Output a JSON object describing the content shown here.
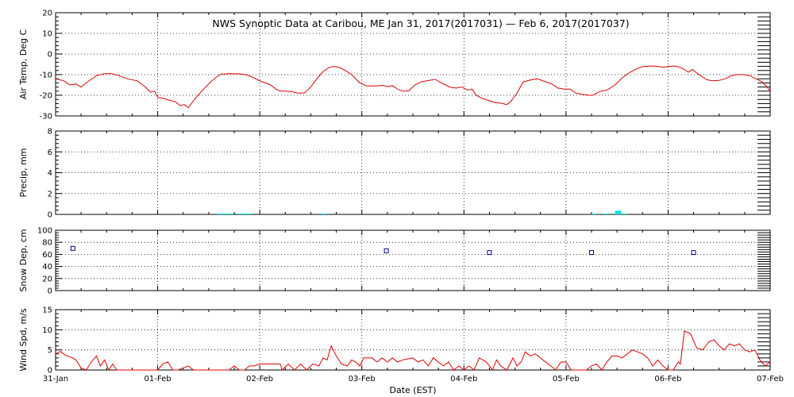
{
  "chart_data": {
    "type": "multi-panel-timeseries",
    "title": "NWS Synoptic Data at Caribou, ME   Jan 31, 2017(2017031) — Feb  6, 2017(2017037)",
    "xlabel": "Date (EST)",
    "x_range": [
      0,
      7
    ],
    "x_ticks": [
      {
        "day": 0,
        "label": "31-Jan"
      },
      {
        "day": 1,
        "label": "01-Feb"
      },
      {
        "day": 2,
        "label": "02-Feb"
      },
      {
        "day": 3,
        "label": "03-Feb"
      },
      {
        "day": 4,
        "label": "04-Feb"
      },
      {
        "day": 5,
        "label": "05-Feb"
      },
      {
        "day": 6,
        "label": "06-Feb"
      },
      {
        "day": 7,
        "label": "07-Feb"
      }
    ],
    "panels": [
      {
        "id": "air-temp",
        "type": "line",
        "ylabel": "Air Temp, Deg C",
        "ylim": [
          -30,
          20
        ],
        "yticks": [
          -30,
          -20,
          -10,
          0,
          10,
          20
        ],
        "color": "#dd0000",
        "points": [
          [
            0.0,
            -12
          ],
          [
            0.08,
            -13
          ],
          [
            0.14,
            -15
          ],
          [
            0.2,
            -14.5
          ],
          [
            0.25,
            -16
          ],
          [
            0.3,
            -14
          ],
          [
            0.4,
            -10.5
          ],
          [
            0.48,
            -9.5
          ],
          [
            0.55,
            -9.5
          ],
          [
            0.62,
            -10.5
          ],
          [
            0.7,
            -12
          ],
          [
            0.8,
            -13
          ],
          [
            0.88,
            -16
          ],
          [
            0.93,
            -18.5
          ],
          [
            0.97,
            -18
          ],
          [
            1.0,
            -21
          ],
          [
            1.06,
            -21.5
          ],
          [
            1.12,
            -22.5
          ],
          [
            1.17,
            -23
          ],
          [
            1.22,
            -25
          ],
          [
            1.26,
            -24.5
          ],
          [
            1.3,
            -26
          ],
          [
            1.36,
            -22
          ],
          [
            1.45,
            -17
          ],
          [
            1.52,
            -13.5
          ],
          [
            1.58,
            -11
          ],
          [
            1.62,
            -9.8
          ],
          [
            1.7,
            -9.5
          ],
          [
            1.8,
            -9.6
          ],
          [
            1.86,
            -10
          ],
          [
            1.92,
            -11
          ],
          [
            2.0,
            -13
          ],
          [
            2.1,
            -14.8
          ],
          [
            2.16,
            -17
          ],
          [
            2.2,
            -18
          ],
          [
            2.25,
            -18
          ],
          [
            2.32,
            -18.3
          ],
          [
            2.38,
            -19
          ],
          [
            2.44,
            -18.8
          ],
          [
            2.5,
            -16
          ],
          [
            2.56,
            -12
          ],
          [
            2.62,
            -8.5
          ],
          [
            2.67,
            -6.8
          ],
          [
            2.72,
            -6
          ],
          [
            2.78,
            -6.5
          ],
          [
            2.84,
            -8
          ],
          [
            2.9,
            -10
          ],
          [
            2.98,
            -14
          ],
          [
            3.05,
            -15.5
          ],
          [
            3.14,
            -15.5
          ],
          [
            3.2,
            -15.2
          ],
          [
            3.26,
            -15.8
          ],
          [
            3.3,
            -15.3
          ],
          [
            3.35,
            -17
          ],
          [
            3.4,
            -18
          ],
          [
            3.46,
            -17.8
          ],
          [
            3.52,
            -15
          ],
          [
            3.58,
            -13.5
          ],
          [
            3.66,
            -12.8
          ],
          [
            3.72,
            -12.3
          ],
          [
            3.78,
            -14
          ],
          [
            3.86,
            -16
          ],
          [
            3.92,
            -16.5
          ],
          [
            3.98,
            -16
          ],
          [
            4.04,
            -17.5
          ],
          [
            4.08,
            -17
          ],
          [
            4.12,
            -20
          ],
          [
            4.18,
            -21.5
          ],
          [
            4.24,
            -22.5
          ],
          [
            4.3,
            -23.5
          ],
          [
            4.36,
            -23.8
          ],
          [
            4.42,
            -24.5
          ],
          [
            4.46,
            -23
          ],
          [
            4.52,
            -19
          ],
          [
            4.58,
            -13.5
          ],
          [
            4.66,
            -12.5
          ],
          [
            4.72,
            -12
          ],
          [
            4.8,
            -13.5
          ],
          [
            4.86,
            -14.5
          ],
          [
            4.92,
            -16.5
          ],
          [
            4.98,
            -17
          ],
          [
            5.04,
            -17
          ],
          [
            5.1,
            -19
          ],
          [
            5.16,
            -19.5
          ],
          [
            5.22,
            -20
          ],
          [
            5.26,
            -20
          ],
          [
            5.34,
            -18
          ],
          [
            5.4,
            -17.5
          ],
          [
            5.48,
            -15
          ],
          [
            5.54,
            -12
          ],
          [
            5.62,
            -9
          ],
          [
            5.7,
            -7
          ],
          [
            5.76,
            -6
          ],
          [
            5.84,
            -5.8
          ],
          [
            5.9,
            -6
          ],
          [
            5.96,
            -6.5
          ],
          [
            6.0,
            -6
          ],
          [
            6.06,
            -5.8
          ],
          [
            6.1,
            -6.2
          ],
          [
            6.14,
            -7
          ],
          [
            6.2,
            -8.8
          ],
          [
            6.24,
            -7.5
          ],
          [
            6.3,
            -10
          ],
          [
            6.38,
            -12.5
          ],
          [
            6.44,
            -13
          ],
          [
            6.5,
            -12.8
          ],
          [
            6.56,
            -12
          ],
          [
            6.62,
            -10.5
          ],
          [
            6.68,
            -10
          ],
          [
            6.74,
            -10
          ],
          [
            6.8,
            -10.5
          ],
          [
            6.86,
            -12
          ],
          [
            6.92,
            -13.5
          ],
          [
            6.97,
            -16
          ],
          [
            7.0,
            -18
          ]
        ]
      },
      {
        "id": "precip",
        "type": "bar",
        "ylabel": "Precip, mm",
        "ylim": [
          0,
          8
        ],
        "yticks": [
          0,
          2,
          4,
          6,
          8
        ],
        "color": "#00e5e5",
        "bars": [
          [
            1.58,
            1.74,
            0.08
          ],
          [
            1.78,
            1.92,
            0.08
          ],
          [
            2.6,
            2.65,
            0.08
          ],
          [
            5.25,
            5.3,
            0.08
          ],
          [
            5.36,
            5.42,
            0.08
          ],
          [
            5.48,
            5.54,
            0.35
          ],
          [
            5.54,
            5.6,
            0.08
          ]
        ]
      },
      {
        "id": "snow-depth",
        "type": "scatter",
        "ylabel": "Snow Dep, cm",
        "ylim": [
          0,
          100
        ],
        "yticks": [
          0,
          20,
          40,
          60,
          80,
          100
        ],
        "color": "#00008b",
        "points": [
          [
            0.17,
            70
          ],
          [
            3.24,
            66
          ],
          [
            4.25,
            63
          ],
          [
            5.25,
            63
          ],
          [
            6.25,
            63
          ]
        ]
      },
      {
        "id": "wind-speed",
        "type": "line",
        "ylabel": "Wind Spd, m/s",
        "ylim": [
          0,
          15
        ],
        "yticks": [
          0,
          5,
          10,
          15
        ],
        "color": "#dd0000",
        "points": [
          [
            0.0,
            4
          ],
          [
            0.05,
            4.6
          ],
          [
            0.1,
            3.6
          ],
          [
            0.15,
            3.2
          ],
          [
            0.2,
            2.5
          ],
          [
            0.25,
            0.5
          ],
          [
            0.3,
            0
          ],
          [
            0.35,
            2
          ],
          [
            0.4,
            3.5
          ],
          [
            0.44,
            1
          ],
          [
            0.48,
            2.5
          ],
          [
            0.52,
            0
          ],
          [
            0.56,
            1.5
          ],
          [
            0.6,
            0
          ],
          [
            0.64,
            0
          ],
          [
            1.0,
            0
          ],
          [
            1.05,
            1.5
          ],
          [
            1.1,
            2
          ],
          [
            1.15,
            0
          ],
          [
            1.2,
            0
          ],
          [
            1.3,
            1
          ],
          [
            1.35,
            0
          ],
          [
            1.7,
            0
          ],
          [
            1.75,
            1
          ],
          [
            1.8,
            0
          ],
          [
            1.85,
            0
          ],
          [
            1.9,
            1
          ],
          [
            1.95,
            1
          ],
          [
            2.0,
            1.5
          ],
          [
            2.1,
            1.5
          ],
          [
            2.2,
            1.5
          ],
          [
            2.22,
            0
          ],
          [
            2.28,
            1.5
          ],
          [
            2.34,
            0
          ],
          [
            2.4,
            1.5
          ],
          [
            2.46,
            0
          ],
          [
            2.52,
            1.5
          ],
          [
            2.58,
            1
          ],
          [
            2.62,
            3
          ],
          [
            2.66,
            2.5
          ],
          [
            2.7,
            6
          ],
          [
            2.75,
            3.5
          ],
          [
            2.8,
            1.5
          ],
          [
            2.86,
            1
          ],
          [
            2.9,
            2.5
          ],
          [
            2.94,
            2
          ],
          [
            2.98,
            1
          ],
          [
            3.02,
            3
          ],
          [
            3.1,
            3
          ],
          [
            3.15,
            2
          ],
          [
            3.2,
            3
          ],
          [
            3.25,
            2
          ],
          [
            3.3,
            3
          ],
          [
            3.35,
            2
          ],
          [
            3.4,
            2.5
          ],
          [
            3.5,
            3
          ],
          [
            3.55,
            2
          ],
          [
            3.6,
            2.5
          ],
          [
            3.65,
            1
          ],
          [
            3.7,
            3
          ],
          [
            3.75,
            2
          ],
          [
            3.8,
            1
          ],
          [
            3.85,
            2
          ],
          [
            3.9,
            0
          ],
          [
            3.95,
            1
          ],
          [
            4.0,
            0
          ],
          [
            4.05,
            1
          ],
          [
            4.1,
            0
          ],
          [
            4.15,
            3
          ],
          [
            4.22,
            2
          ],
          [
            4.28,
            0
          ],
          [
            4.32,
            2.5
          ],
          [
            4.36,
            1
          ],
          [
            4.42,
            0
          ],
          [
            4.48,
            3
          ],
          [
            4.52,
            1
          ],
          [
            4.56,
            2
          ],
          [
            4.6,
            4.5
          ],
          [
            4.65,
            3.5
          ],
          [
            4.7,
            4
          ],
          [
            4.75,
            3
          ],
          [
            4.8,
            2
          ],
          [
            4.85,
            1
          ],
          [
            4.9,
            0
          ],
          [
            4.95,
            2
          ],
          [
            5.0,
            2
          ],
          [
            5.05,
            0
          ],
          [
            5.2,
            0
          ],
          [
            5.25,
            1
          ],
          [
            5.3,
            1.5
          ],
          [
            5.35,
            0
          ],
          [
            5.4,
            2
          ],
          [
            5.45,
            3.5
          ],
          [
            5.5,
            3.5
          ],
          [
            5.55,
            3
          ],
          [
            5.6,
            4
          ],
          [
            5.65,
            5
          ],
          [
            5.7,
            4.5
          ],
          [
            5.75,
            4
          ],
          [
            5.8,
            3
          ],
          [
            5.85,
            1
          ],
          [
            5.9,
            2.5
          ],
          [
            5.95,
            1
          ],
          [
            6.0,
            0
          ],
          [
            6.05,
            0
          ],
          [
            6.1,
            2
          ],
          [
            6.12,
            1.5
          ],
          [
            6.16,
            9.7
          ],
          [
            6.22,
            9
          ],
          [
            6.28,
            5.5
          ],
          [
            6.34,
            5
          ],
          [
            6.4,
            7
          ],
          [
            6.45,
            7.5
          ],
          [
            6.5,
            6
          ],
          [
            6.55,
            5
          ],
          [
            6.6,
            6.5
          ],
          [
            6.65,
            6
          ],
          [
            6.7,
            6.5
          ],
          [
            6.75,
            5
          ],
          [
            6.8,
            4.5
          ],
          [
            6.85,
            5
          ],
          [
            6.9,
            2.5
          ],
          [
            6.95,
            1
          ],
          [
            7.0,
            2
          ]
        ]
      }
    ]
  }
}
